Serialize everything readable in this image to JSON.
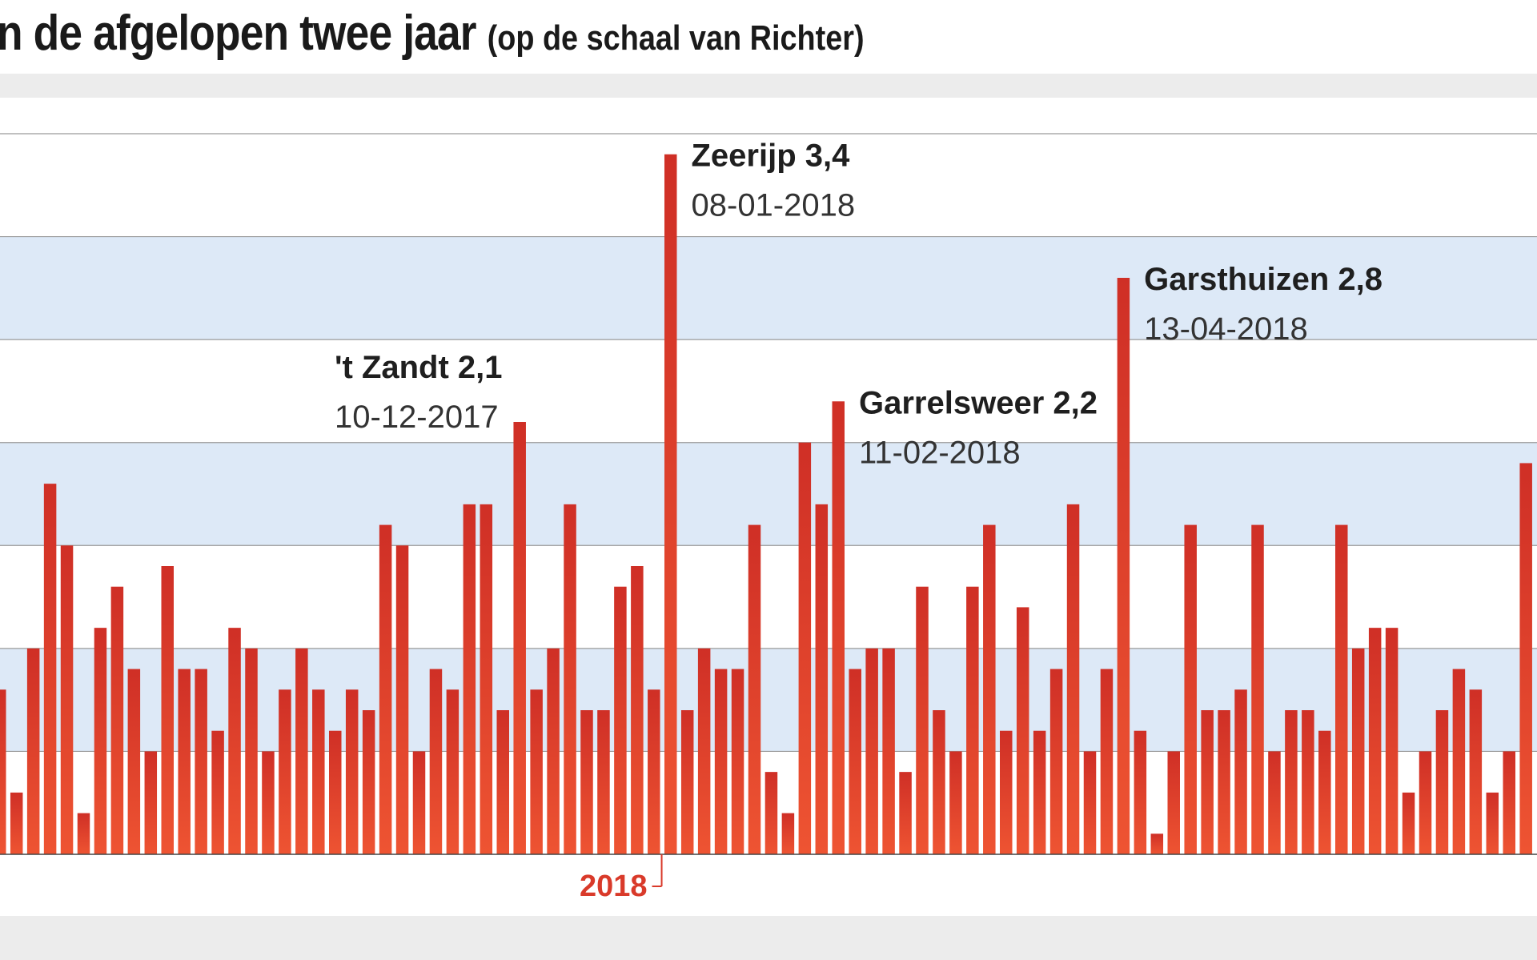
{
  "title": {
    "main": "n de afgelopen twee jaar",
    "sub": "(op de schaal van Richter)"
  },
  "chart_data": {
    "type": "bar",
    "title": "n de afgelopen twee jaar (op de schaal van Richter)",
    "xlabel": "",
    "ylabel": "",
    "ylim": [
      0,
      3.5
    ],
    "grid": true,
    "gridlines": [
      0.5,
      1.0,
      1.5,
      2.0,
      2.5,
      3.0,
      3.5
    ],
    "shaded_bands": [
      [
        0.5,
        1.0
      ],
      [
        1.5,
        2.0
      ],
      [
        2.5,
        3.0
      ]
    ],
    "bar_color": "#d93a2a",
    "band_color": "#dde9f7",
    "year_marker": {
      "label": "2018",
      "after_bar_index": 39,
      "color": "#d93a2a"
    },
    "values": [
      0.8,
      0.3,
      1.0,
      1.8,
      1.5,
      0.2,
      1.1,
      1.3,
      0.9,
      0.5,
      1.4,
      0.9,
      0.9,
      0.6,
      1.1,
      1.0,
      0.5,
      0.8,
      1.0,
      0.8,
      0.6,
      0.8,
      0.7,
      1.6,
      1.5,
      0.5,
      0.9,
      0.8,
      1.7,
      1.7,
      0.7,
      2.1,
      0.8,
      1.0,
      1.7,
      0.7,
      0.7,
      1.3,
      1.4,
      0.8,
      3.4,
      0.7,
      1.0,
      0.9,
      0.9,
      1.6,
      0.4,
      0.2,
      2.0,
      1.7,
      2.2,
      0.9,
      1.0,
      1.0,
      0.4,
      1.3,
      0.7,
      0.5,
      1.3,
      1.6,
      0.6,
      1.2,
      0.6,
      0.9,
      1.7,
      0.5,
      0.9,
      2.8,
      0.6,
      0.1,
      0.5,
      1.6,
      0.7,
      0.7,
      0.8,
      1.6,
      0.5,
      0.7,
      0.7,
      0.6,
      1.6,
      1.0,
      1.1,
      1.1,
      0.3,
      0.5,
      0.7,
      0.9,
      0.8,
      0.3,
      0.5,
      1.9
    ],
    "annotations": [
      {
        "bar_index": 31,
        "name": "'t Zandt 2,1",
        "date": "10-12-2017",
        "bold_name": true
      },
      {
        "bar_index": 40,
        "name": "Zeerijp 3,4",
        "date": "08-01-2018",
        "bold_name": true
      },
      {
        "bar_index": 50,
        "name": "Garrelsweer 2,2",
        "date": "11-02-2018",
        "bold_name": true
      },
      {
        "bar_index": 67,
        "name": "Garsthuizen 2,8",
        "date": "13-04-2018",
        "bold_name": true
      }
    ]
  }
}
